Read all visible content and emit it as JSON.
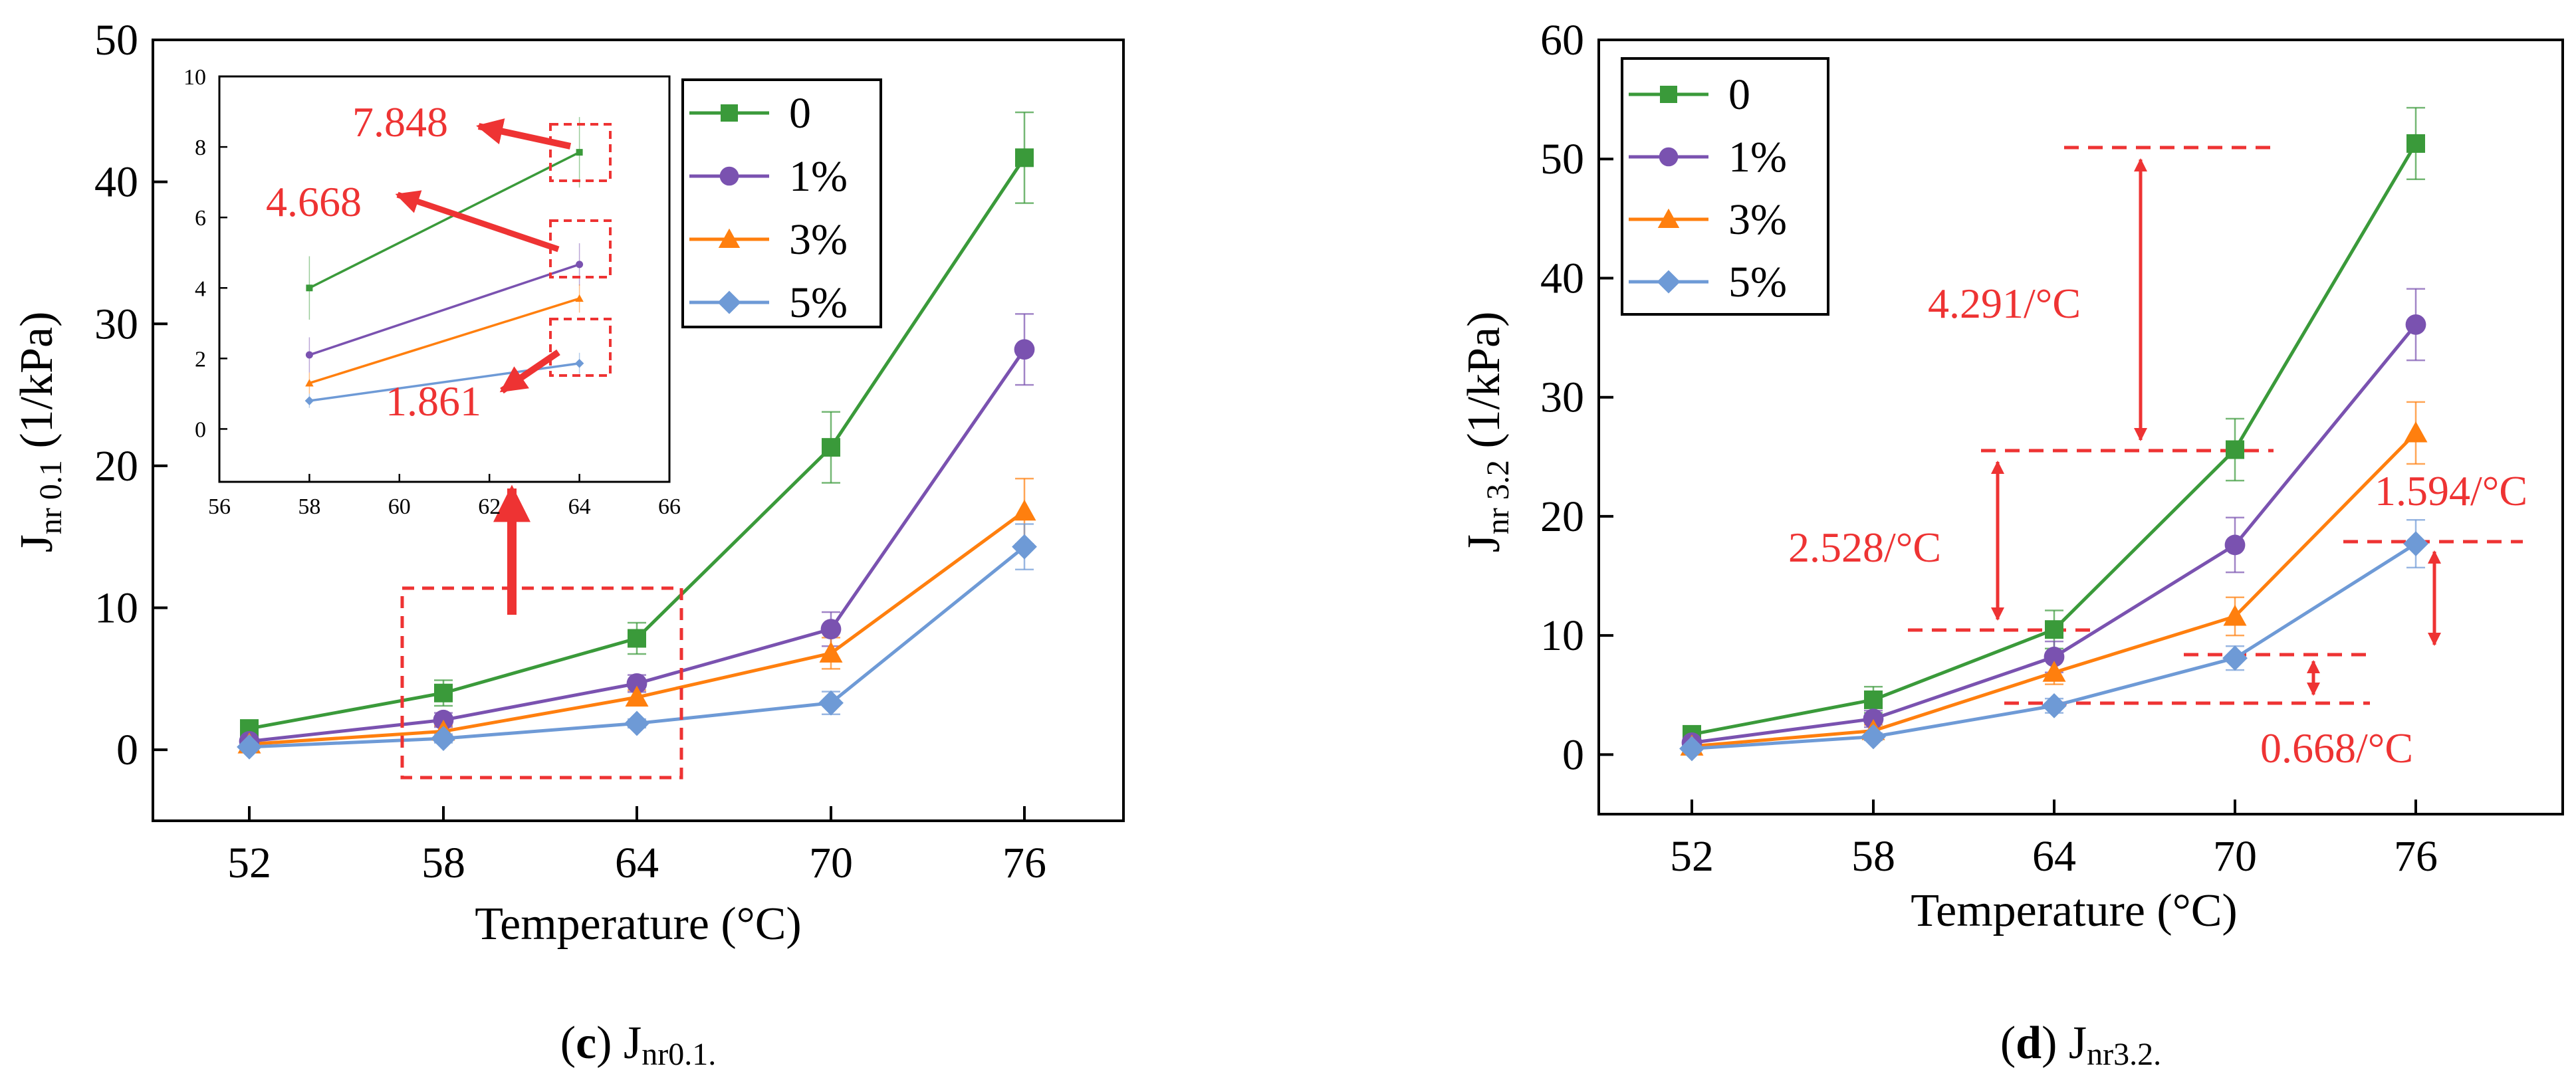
{
  "colors": {
    "green": "#3a9a3a",
    "purple": "#7a52b0",
    "orange": "#ff7f0e",
    "blue": "#6e9ad6",
    "red": "#ee3333",
    "axis": "#000000"
  },
  "chart_data": [
    {
      "id": "c",
      "type": "line",
      "panel_label": "c",
      "caption_main": "J",
      "caption_sub": "nr0.1.",
      "xlabel": "Temperature (°C)",
      "ylabel_main": "J",
      "ylabel_sub": "nr 0.1",
      "ylabel_unit": " (1/kPa)",
      "categories": [
        "52",
        "58",
        "64",
        "70",
        "76"
      ],
      "ylim": [
        -5,
        50
      ],
      "yticks": [
        "0",
        "10",
        "20",
        "30",
        "40",
        "50"
      ],
      "legend": [
        "0",
        "1%",
        "3%",
        "5%"
      ],
      "series": [
        {
          "name": "0",
          "values": [
            1.5,
            4.0,
            7.85,
            21.3,
            41.7
          ],
          "err": [
            0.3,
            0.9,
            1.1,
            2.5,
            3.2
          ],
          "marker": "square"
        },
        {
          "name": "1%",
          "values": [
            0.6,
            2.1,
            4.67,
            8.5,
            28.2
          ],
          "err": [
            0.2,
            0.5,
            0.6,
            1.2,
            2.5
          ],
          "marker": "circle"
        },
        {
          "name": "3%",
          "values": [
            0.4,
            1.3,
            3.7,
            6.8,
            16.8
          ],
          "err": [
            0.2,
            0.4,
            0.5,
            1.1,
            2.3
          ],
          "marker": "triangle"
        },
        {
          "name": "5%",
          "values": [
            0.2,
            0.8,
            1.86,
            3.3,
            14.3
          ],
          "err": [
            0.1,
            0.3,
            0.3,
            0.8,
            1.6
          ],
          "marker": "diamond"
        }
      ],
      "inset": {
        "x": [
          58,
          64
        ],
        "xlim": [
          56,
          66
        ],
        "ylim": [
          -1.5,
          10
        ],
        "xticks": [
          "56",
          "58",
          "60",
          "62",
          "64",
          "66"
        ],
        "yticks": [
          "0",
          "2",
          "4",
          "6",
          "8",
          "10"
        ],
        "series": [
          {
            "name": "0",
            "values": [
              4.0,
              7.848
            ],
            "err": [
              0.9,
              1.0
            ]
          },
          {
            "name": "1%",
            "values": [
              2.1,
              4.668
            ],
            "err": [
              0.5,
              0.6
            ]
          },
          {
            "name": "3%",
            "values": [
              1.3,
              3.7
            ],
            "err": [
              0.3,
              0.4
            ]
          },
          {
            "name": "5%",
            "values": [
              0.8,
              1.861
            ],
            "err": [
              0.2,
              0.3
            ]
          }
        ],
        "annotations": [
          "7.848",
          "4.668",
          "1.861"
        ]
      }
    },
    {
      "id": "d",
      "type": "line",
      "panel_label": "d",
      "caption_main": "J",
      "caption_sub": "nr3.2.",
      "xlabel": "Temperature (°C)",
      "ylabel_main": "J",
      "ylabel_sub": "nr 3.2",
      "ylabel_unit": " (1/kPa)",
      "categories": [
        "52",
        "58",
        "64",
        "70",
        "76"
      ],
      "ylim": [
        -5,
        60
      ],
      "yticks": [
        "0",
        "10",
        "20",
        "30",
        "40",
        "50",
        "60"
      ],
      "legend": [
        "0",
        "1%",
        "3%",
        "5%"
      ],
      "series": [
        {
          "name": "0",
          "values": [
            1.7,
            4.6,
            10.5,
            25.6,
            51.3
          ],
          "err": [
            0.4,
            1.1,
            1.6,
            2.6,
            3.0
          ],
          "marker": "square"
        },
        {
          "name": "1%",
          "values": [
            1.0,
            3.0,
            8.2,
            17.6,
            36.1
          ],
          "err": [
            0.3,
            0.7,
            1.3,
            2.3,
            3.0
          ],
          "marker": "circle"
        },
        {
          "name": "3%",
          "values": [
            0.7,
            2.0,
            6.9,
            11.6,
            27.0
          ],
          "err": [
            0.2,
            0.5,
            1.0,
            1.6,
            2.6
          ],
          "marker": "triangle"
        },
        {
          "name": "5%",
          "values": [
            0.5,
            1.5,
            4.1,
            8.1,
            17.7
          ],
          "err": [
            0.2,
            0.3,
            0.6,
            1.0,
            2.0
          ],
          "marker": "diamond"
        }
      ],
      "annotations": [
        "4.291/°C",
        "2.528/°C",
        "1.594/°C",
        "0.668/°C"
      ]
    }
  ]
}
